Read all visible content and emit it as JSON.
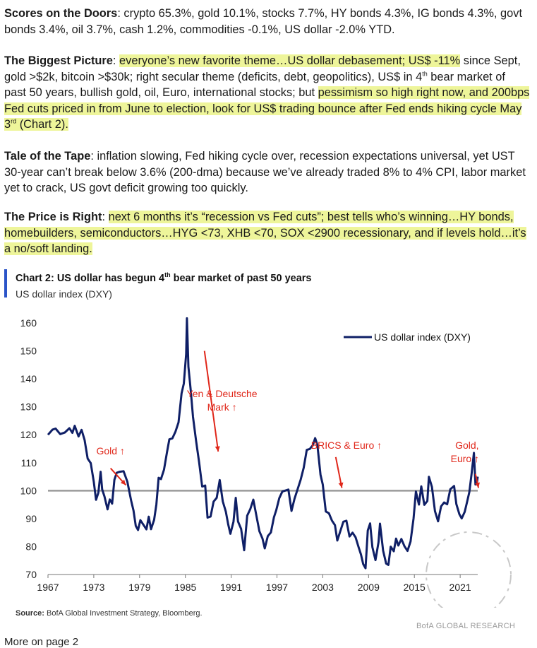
{
  "paragraphs": {
    "p1": {
      "label": "Scores on the Doors",
      "text": ": crypto 65.3%, gold 10.1%, stocks 7.7%, HY bonds 4.3%, IG bonds 4.3%, govt bonds 3.4%, oil 3.7%, cash 1.2%, commodities -0.1%, US dollar -2.0% YTD."
    },
    "p2": {
      "label": "The Biggest Picture",
      "colon": ":",
      "hl1": "everyone’s new favorite theme…US dollar debasement; US$ -11%",
      "mid_a": "since Sept, gold >$2k, bitcoin >$30k; right secular theme (deficits, debt, geopolitics), US$ in 4",
      "sup": "th",
      "mid_b": " bear market of past 50 years, bullish gold, oil, Euro, international stocks; but",
      "hl2_a": "pessimism so high right now, and 200bps Fed cuts priced in from June to election, look for US$ trading bounce after Fed ends hiking cycle May 3",
      "sup2": "rd",
      "hl2_b": " (Chart 2)."
    },
    "p3": {
      "label": "Tale of the Tape",
      "text": ": inflation slowing, Fed hiking cycle over, recession expectations universal, yet UST 30-year can’t break below 3.6% (200-dma) because we’ve already traded 8% to 4% CPI, labor market yet to crack, US govt deficit growing too quickly."
    },
    "p4": {
      "label": "The Price is Right",
      "colon": ":",
      "hl": "next 6 months it’s “recession vs Fed cuts”; best tells who’s winning…HY bonds, homebuilders, semiconductors…HYG <73, XHB <70, SOX <2900 recessionary, and if levels hold…it’s a no/soft landing."
    }
  },
  "chart_title_a": "Chart 2: US dollar has begun 4",
  "chart_title_sup": "th",
  "chart_title_b": " bear market of past 50 years",
  "chart_subtitle": "US dollar index (DXY)",
  "source_label": "Source:",
  "source_text": " BofA Global Investment Strategy, Bloomberg.",
  "watermark": "BofA GLOBAL RESEARCH",
  "footer_text": "More on page 2",
  "colors": {
    "line": "#0f1f66",
    "ref": "#9a9a9a",
    "annot": "#e0271a",
    "accent": "#2b54c8"
  },
  "chart_data": {
    "type": "line",
    "title": "Chart 2: US dollar has begun 4th bear market of past 50 years",
    "ylabel": "US dollar index (DXY)",
    "ylim": [
      70,
      160
    ],
    "yticks": [
      70,
      80,
      90,
      100,
      110,
      120,
      130,
      140,
      150,
      160
    ],
    "xlim": [
      1967,
      2023.3
    ],
    "xticks": [
      1967,
      1973,
      1979,
      1985,
      1991,
      1997,
      2003,
      2009,
      2015,
      2021
    ],
    "reference_line": 100,
    "legend": "US dollar index (DXY)",
    "series": [
      {
        "name": "US dollar index (DXY)",
        "points": [
          [
            1967.0,
            120
          ],
          [
            1967.6,
            120
          ],
          [
            1968.0,
            121
          ],
          [
            1968.6,
            122
          ],
          [
            1969.2,
            121.5
          ],
          [
            1969.8,
            122
          ],
          [
            1970.2,
            121
          ],
          [
            1970.5,
            123
          ],
          [
            1971.0,
            121
          ],
          [
            1971.4,
            120
          ],
          [
            1971.8,
            117
          ],
          [
            1972.2,
            111
          ],
          [
            1972.6,
            110
          ],
          [
            1973.0,
            104
          ],
          [
            1973.3,
            97
          ],
          [
            1973.6,
            99
          ],
          [
            1973.9,
            106
          ],
          [
            1974.1,
            102
          ],
          [
            1974.4,
            99
          ],
          [
            1974.8,
            95
          ],
          [
            1975.1,
            98
          ],
          [
            1975.4,
            96
          ],
          [
            1975.7,
            104
          ],
          [
            1976.0,
            106
          ],
          [
            1976.4,
            107
          ],
          [
            1976.9,
            105
          ],
          [
            1977.4,
            103
          ],
          [
            1977.9,
            98
          ],
          [
            1978.2,
            94
          ],
          [
            1978.5,
            88
          ],
          [
            1978.8,
            86
          ],
          [
            1979.1,
            89
          ],
          [
            1979.5,
            88
          ],
          [
            1979.9,
            87
          ],
          [
            1980.2,
            91
          ],
          [
            1980.5,
            86
          ],
          [
            1980.9,
            90
          ],
          [
            1981.2,
            95
          ],
          [
            1981.5,
            104
          ],
          [
            1981.8,
            103
          ],
          [
            1982.2,
            107
          ],
          [
            1982.6,
            114
          ],
          [
            1982.9,
            118
          ],
          [
            1983.3,
            119
          ],
          [
            1983.7,
            122
          ],
          [
            1984.1,
            126
          ],
          [
            1984.5,
            133
          ],
          [
            1984.8,
            140
          ],
          [
            1985.1,
            150
          ],
          [
            1985.2,
            160
          ],
          [
            1985.4,
            145
          ],
          [
            1985.7,
            136
          ],
          [
            1986.0,
            126
          ],
          [
            1986.4,
            118
          ],
          [
            1986.8,
            111
          ],
          [
            1987.2,
            103
          ],
          [
            1987.6,
            100
          ],
          [
            1987.9,
            92
          ],
          [
            1988.3,
            89
          ],
          [
            1988.7,
            95
          ],
          [
            1989.1,
            97
          ],
          [
            1989.5,
            104
          ],
          [
            1989.9,
            97
          ],
          [
            1990.3,
            94
          ],
          [
            1990.6,
            89
          ],
          [
            1990.9,
            85
          ],
          [
            1991.3,
            90
          ],
          [
            1991.6,
            98
          ],
          [
            1991.9,
            89
          ],
          [
            1992.3,
            87
          ],
          [
            1992.7,
            80
          ],
          [
            1993.1,
            93
          ],
          [
            1993.5,
            92
          ],
          [
            1993.9,
            96
          ],
          [
            1994.3,
            91
          ],
          [
            1994.7,
            86
          ],
          [
            1995.1,
            84
          ],
          [
            1995.4,
            80
          ],
          [
            1995.8,
            85
          ],
          [
            1996.2,
            87
          ],
          [
            1996.6,
            89
          ],
          [
            1996.9,
            91
          ],
          [
            1997.3,
            96
          ],
          [
            1997.7,
            99
          ],
          [
            1998.1,
            100
          ],
          [
            1998.5,
            101
          ],
          [
            1998.9,
            94
          ],
          [
            1999.3,
            99
          ],
          [
            1999.7,
            99
          ],
          [
            2000.1,
            103
          ],
          [
            2000.5,
            108
          ],
          [
            2000.9,
            115
          ],
          [
            2001.3,
            116
          ],
          [
            2001.7,
            118
          ],
          [
            2002.0,
            120
          ],
          [
            2002.3,
            117
          ],
          [
            2002.7,
            107
          ],
          [
            2003.0,
            103
          ],
          [
            2003.4,
            94
          ],
          [
            2003.8,
            90
          ],
          [
            2004.2,
            88
          ],
          [
            2004.6,
            87
          ],
          [
            2004.9,
            81
          ],
          [
            2005.3,
            85
          ],
          [
            2005.7,
            89
          ],
          [
            2006.1,
            90
          ],
          [
            2006.5,
            85
          ],
          [
            2006.9,
            83
          ],
          [
            2007.3,
            82
          ],
          [
            2007.7,
            79
          ],
          [
            2008.0,
            76
          ],
          [
            2008.3,
            72
          ],
          [
            2008.6,
            74
          ],
          [
            2008.9,
            87
          ],
          [
            2009.2,
            89
          ],
          [
            2009.5,
            80
          ],
          [
            2009.9,
            76
          ],
          [
            2010.3,
            83
          ],
          [
            2010.5,
            88
          ],
          [
            2010.9,
            79
          ],
          [
            2011.3,
            75
          ],
          [
            2011.6,
            74
          ],
          [
            2011.9,
            80
          ],
          [
            2012.3,
            79
          ],
          [
            2012.6,
            83
          ],
          [
            2012.9,
            80
          ],
          [
            2013.3,
            83
          ],
          [
            2013.7,
            81
          ],
          [
            2014.1,
            80
          ],
          [
            2014.5,
            80
          ],
          [
            2014.9,
            89
          ],
          [
            2015.2,
            98
          ],
          [
            2015.6,
            94
          ],
          [
            2015.9,
            100
          ],
          [
            2016.3,
            94
          ],
          [
            2016.7,
            96
          ],
          [
            2016.9,
            103
          ],
          [
            2017.3,
            100
          ],
          [
            2017.7,
            92
          ],
          [
            2018.1,
            89
          ],
          [
            2018.5,
            95
          ],
          [
            2018.9,
            97
          ],
          [
            2019.3,
            97
          ],
          [
            2019.7,
            99
          ],
          [
            2020.2,
            102
          ],
          [
            2020.5,
            95
          ],
          [
            2020.9,
            92
          ],
          [
            2021.2,
            90
          ],
          [
            2021.6,
            93
          ],
          [
            2021.9,
            96
          ],
          [
            2022.2,
            99
          ],
          [
            2022.5,
            105
          ],
          [
            2022.8,
            112
          ],
          [
            2023.0,
            103
          ],
          [
            2023.2,
            102
          ],
          [
            2023.3,
            105
          ]
        ]
      }
    ],
    "annotations": [
      {
        "label": "Gold ↑",
        "year": 1975.2,
        "value": 113
      },
      {
        "label": "Yen & Deutsche",
        "label2": "Mark ↑",
        "year": 1989.8,
        "value": 133.5
      },
      {
        "label": "BRICS & Euro ↑",
        "year": 2006.1,
        "value": 115
      },
      {
        "label": "Gold,",
        "label2": "Euro ↑",
        "year": 2021.9,
        "value": 115
      }
    ]
  }
}
